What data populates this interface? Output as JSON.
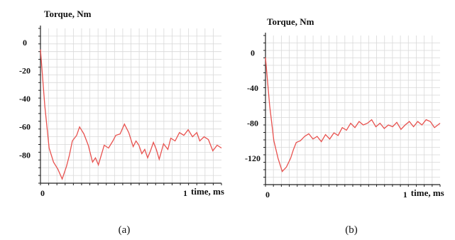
{
  "chart_data": [
    {
      "type": "line",
      "caption": "(a)",
      "title": "Torque, Nm",
      "xlabel": "time, ms",
      "ylabel": "",
      "xlim": [
        0,
        1.25
      ],
      "ylim": [
        -100,
        10
      ],
      "x_ticks": [
        0,
        1
      ],
      "y_ticks": [
        0,
        -20,
        -40,
        -60,
        -80
      ],
      "grid": true,
      "series": [
        {
          "color": "#e8524f",
          "x": [
            0,
            0.03,
            0.06,
            0.09,
            0.12,
            0.15,
            0.18,
            0.2,
            0.22,
            0.25,
            0.27,
            0.3,
            0.33,
            0.36,
            0.38,
            0.4,
            0.42,
            0.44,
            0.47,
            0.5,
            0.52,
            0.55,
            0.58,
            0.61,
            0.64,
            0.66,
            0.68,
            0.7,
            0.72,
            0.74,
            0.76,
            0.78,
            0.8,
            0.82,
            0.85,
            0.88,
            0.9,
            0.93,
            0.96,
            0.99,
            1.02,
            1.05,
            1.08,
            1.1,
            1.13,
            1.16,
            1.19,
            1.22,
            1.25
          ],
          "y": [
            -5,
            -45,
            -75,
            -85,
            -90,
            -97,
            -88,
            -80,
            -70,
            -66,
            -60,
            -65,
            -73,
            -85,
            -82,
            -87,
            -80,
            -73,
            -75,
            -70,
            -66,
            -65,
            -58,
            -64,
            -74,
            -70,
            -73,
            -79,
            -76,
            -82,
            -77,
            -71,
            -76,
            -83,
            -72,
            -76,
            -68,
            -70,
            -64,
            -66,
            -62,
            -67,
            -64,
            -70,
            -67,
            -69,
            -77,
            -73,
            -75
          ]
        }
      ]
    },
    {
      "type": "line",
      "caption": "(b)",
      "title": "Torque, Nm",
      "xlabel": "time, ms",
      "ylabel": "",
      "xlim": [
        0,
        1.25
      ],
      "ylim": [
        -150,
        20
      ],
      "x_ticks": [
        0,
        1
      ],
      "y_ticks": [
        0,
        -40,
        -80,
        -120
      ],
      "grid": true,
      "series": [
        {
          "color": "#e8524f",
          "x": [
            0,
            0.03,
            0.06,
            0.09,
            0.12,
            0.15,
            0.18,
            0.2,
            0.22,
            0.25,
            0.28,
            0.31,
            0.34,
            0.37,
            0.4,
            0.43,
            0.46,
            0.49,
            0.52,
            0.55,
            0.58,
            0.61,
            0.64,
            0.67,
            0.7,
            0.73,
            0.76,
            0.79,
            0.82,
            0.85,
            0.88,
            0.91,
            0.94,
            0.97,
            1.0,
            1.03,
            1.06,
            1.09,
            1.12,
            1.15,
            1.18,
            1.21,
            1.25
          ],
          "y": [
            -5,
            -60,
            -100,
            -120,
            -135,
            -130,
            -120,
            -110,
            -102,
            -100,
            -95,
            -92,
            -98,
            -95,
            -101,
            -93,
            -98,
            -91,
            -94,
            -85,
            -88,
            -80,
            -85,
            -78,
            -82,
            -80,
            -76,
            -84,
            -80,
            -86,
            -82,
            -84,
            -79,
            -87,
            -82,
            -78,
            -84,
            -78,
            -82,
            -76,
            -78,
            -85,
            -80
          ]
        }
      ]
    }
  ]
}
